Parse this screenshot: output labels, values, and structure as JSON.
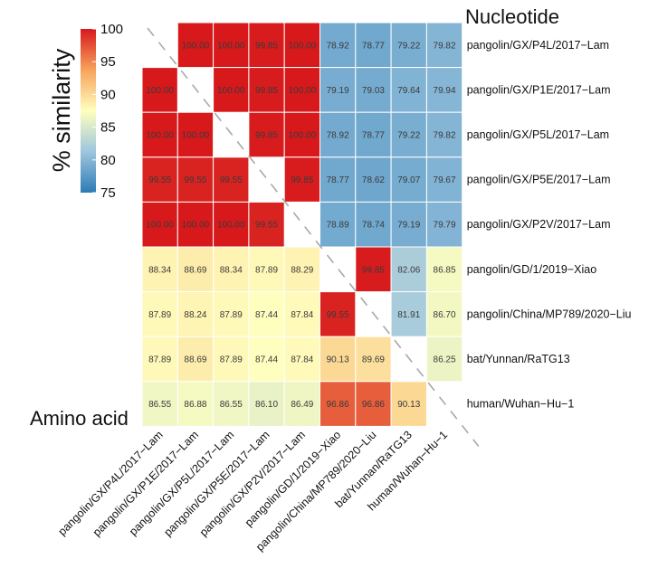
{
  "chart_data": {
    "type": "heatmap",
    "labels": [
      "pangolin/GX/P4L/2017−Lam",
      "pangolin/GX/P1E/2017−Lam",
      "pangolin/GX/P5L/2017−Lam",
      "pangolin/GX/P5E/2017−Lam",
      "pangolin/GX/P2V/2017−Lam",
      "pangolin/GD/1/2019−Xiao",
      "pangolin/China/MP789/2020−Liu",
      "bat/Yunnan/RaTG13",
      "human/Wuhan−Hu−1"
    ],
    "upper_triangle_label": "Nucleotide",
    "lower_triangle_label": "Amino acid",
    "matrix": [
      [
        null,
        "100.00",
        "100.00",
        "99.85",
        "100.00",
        "78.92",
        "78.77",
        "79.22",
        "79.82"
      ],
      [
        "100.00",
        null,
        "100.00",
        "99.85",
        "100.00",
        "79.19",
        "79.03",
        "79.64",
        "79.94"
      ],
      [
        "100.00",
        "100.00",
        null,
        "99.85",
        "100.00",
        "78.92",
        "78.77",
        "79.22",
        "79.82"
      ],
      [
        "99.55",
        "99.55",
        "99.55",
        null,
        "99.85",
        "78.77",
        "78.62",
        "79.07",
        "79.67"
      ],
      [
        "100.00",
        "100.00",
        "100.00",
        "99.55",
        null,
        "78.89",
        "78.74",
        "79.19",
        "79.79"
      ],
      [
        "88.34",
        "88.69",
        "88.34",
        "87.89",
        "88.29",
        null,
        "99.85",
        "82.06",
        "86.85"
      ],
      [
        "87.89",
        "88.24",
        "87.89",
        "87.44",
        "87.84",
        "99.55",
        null,
        "81.91",
        "86.70"
      ],
      [
        "87.89",
        "88.69",
        "87.89",
        "87.44",
        "87.84",
        "90.13",
        "89.69",
        null,
        "86.25"
      ],
      [
        "86.55",
        "86.88",
        "86.55",
        "86.10",
        "86.49",
        "96.86",
        "96.86",
        "90.13",
        null
      ]
    ],
    "legend": {
      "title": "% similarity",
      "range": [
        75,
        100
      ],
      "ticks": [
        "100",
        "95",
        "90",
        "85",
        "80",
        "75"
      ]
    }
  }
}
